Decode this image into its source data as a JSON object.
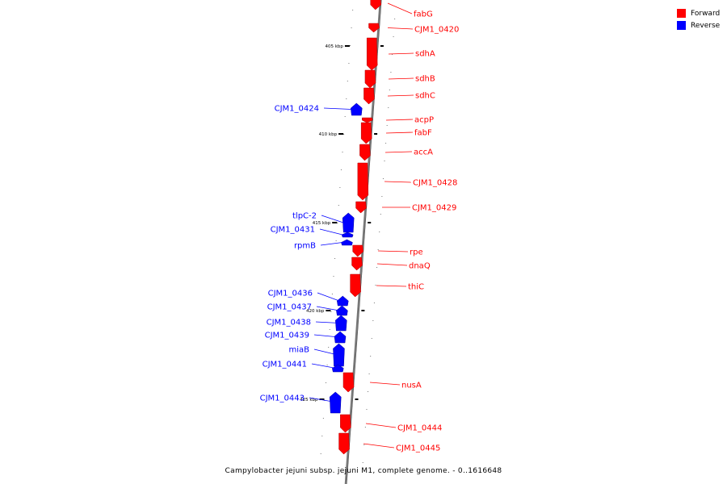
{
  "colors": {
    "forward": "#ff0000",
    "reverse": "#0000ff",
    "axis": "#777777"
  },
  "legend": [
    {
      "label": "Forward",
      "color": "#ff0000"
    },
    {
      "label": "Reverse",
      "color": "#0000ff"
    }
  ],
  "caption": "Campylobacter jejuni subsp. jejuni M1, complete genome. - 0..1616648",
  "scale_labels": [
    "405 kbp",
    "410 kbp",
    "415 kbp",
    "420 kbp",
    "425 kbp"
  ],
  "genes": [
    {
      "label": "fabG",
      "strand": "forward"
    },
    {
      "label": "CJM1_0420",
      "strand": "forward"
    },
    {
      "label": "sdhA",
      "strand": "forward"
    },
    {
      "label": "sdhB",
      "strand": "forward"
    },
    {
      "label": "sdhC",
      "strand": "forward"
    },
    {
      "label": "CJM1_0424",
      "strand": "reverse"
    },
    {
      "label": "acpP",
      "strand": "forward"
    },
    {
      "label": "fabF",
      "strand": "forward"
    },
    {
      "label": "accA",
      "strand": "forward"
    },
    {
      "label": "CJM1_0428",
      "strand": "forward"
    },
    {
      "label": "CJM1_0429",
      "strand": "forward"
    },
    {
      "label": "tlpC-2",
      "strand": "reverse"
    },
    {
      "label": "CJM1_0431",
      "strand": "reverse"
    },
    {
      "label": "rpmB",
      "strand": "reverse"
    },
    {
      "label": "rpe",
      "strand": "forward"
    },
    {
      "label": "dnaQ",
      "strand": "forward"
    },
    {
      "label": "thiC",
      "strand": "forward"
    },
    {
      "label": "CJM1_0436",
      "strand": "reverse"
    },
    {
      "label": "CJM1_0437",
      "strand": "reverse"
    },
    {
      "label": "CJM1_0438",
      "strand": "reverse"
    },
    {
      "label": "CJM1_0439",
      "strand": "reverse"
    },
    {
      "label": "miaB",
      "strand": "reverse"
    },
    {
      "label": "CJM1_0441",
      "strand": "reverse"
    },
    {
      "label": "nusA",
      "strand": "forward"
    },
    {
      "label": "CJM1_0443",
      "strand": "reverse"
    },
    {
      "label": "CJM1_0444",
      "strand": "forward"
    },
    {
      "label": "CJM1_0445",
      "strand": "forward"
    }
  ]
}
